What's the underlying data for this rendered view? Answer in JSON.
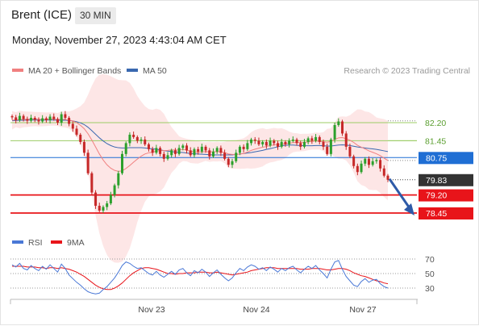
{
  "header": {
    "title": "Brent (ICE)",
    "timeframe": "30 MIN",
    "timestamp": "Monday, November 27, 2023 4:43:04 AM CET"
  },
  "legend": {
    "ma20_label": "MA 20 + Bollinger Bands",
    "ma50_label": "MA 50",
    "rsi_label": "RSI",
    "ma9_label": "9MA",
    "copyright": "Research © 2023 Trading Central"
  },
  "colors": {
    "ma20": "#f08080",
    "ma50": "#3a68b0",
    "bb_fill": "#fde3e3",
    "candle_up": "#2ca02c",
    "candle_down": "#c62828",
    "support": "#e8141a",
    "pivot": "#1f6ed4",
    "resistance": "#9ccc65",
    "resistance_text": "#5a9e2f",
    "last_price_bg": "#333333",
    "rsi": "#4a78d6",
    "rsi_ma": "#e8141a",
    "arrow": "#2e5aa8"
  },
  "chart_data": [
    {
      "type": "candlestick",
      "title": "Brent (ICE)",
      "timeframe": "30 MIN",
      "ylim": [
        78.2,
        82.6
      ],
      "x_ticks": [
        "Nov 23",
        "Nov 24",
        "Nov 27"
      ],
      "levels": [
        {
          "value": 82.2,
          "label": "82.20",
          "kind": "resistance"
        },
        {
          "value": 81.45,
          "label": "81.45",
          "kind": "resistance"
        },
        {
          "value": 80.75,
          "label": "80.75",
          "kind": "pivot"
        },
        {
          "value": 79.2,
          "label": "79.20",
          "kind": "support"
        },
        {
          "value": 78.45,
          "label": "78.45",
          "kind": "support"
        }
      ],
      "last_price": {
        "value": 79.83,
        "label": "79.83"
      },
      "forecast_arrow": {
        "from": 79.83,
        "to": 78.45,
        "direction": "down"
      },
      "close_series": [
        82.42,
        82.3,
        82.48,
        82.35,
        82.28,
        82.4,
        82.32,
        82.25,
        82.38,
        82.3,
        82.45,
        82.35,
        82.2,
        82.55,
        82.4,
        82.15,
        81.95,
        81.7,
        81.4,
        80.95,
        80.1,
        79.3,
        78.75,
        78.55,
        78.7,
        78.85,
        79.2,
        79.6,
        80.1,
        80.9,
        81.35,
        81.7,
        81.6,
        81.45,
        81.5,
        81.3,
        81.1,
        80.95,
        81.15,
        80.9,
        80.7,
        80.85,
        81.05,
        80.9,
        81.15,
        81.25,
        81.05,
        80.85,
        81.1,
        81.0,
        81.2,
        81.05,
        80.8,
        81.0,
        81.15,
        80.95,
        80.7,
        80.45,
        80.6,
        80.95,
        81.2,
        81.1,
        81.35,
        81.5,
        81.45,
        81.3,
        81.4,
        81.25,
        81.45,
        81.35,
        81.2,
        81.4,
        81.3,
        81.45,
        81.5,
        81.35,
        81.2,
        81.4,
        81.55,
        81.45,
        81.6,
        81.4,
        81.2,
        80.9,
        81.5,
        82.1,
        82.25,
        81.75,
        81.2,
        80.8,
        80.4,
        80.15,
        80.5,
        80.7,
        80.45,
        80.6,
        80.65,
        80.3,
        80.0,
        79.83
      ],
      "ma20_series": [
        82.3,
        82.32,
        82.33,
        82.34,
        82.34,
        82.35,
        82.35,
        82.34,
        82.34,
        82.34,
        82.35,
        82.35,
        82.33,
        82.34,
        82.33,
        82.31,
        82.27,
        82.2,
        82.09,
        81.95,
        81.74,
        81.48,
        81.19,
        80.9,
        80.65,
        80.45,
        80.31,
        80.22,
        80.18,
        80.2,
        80.3,
        80.42,
        80.56,
        80.69,
        80.81,
        80.9,
        80.95,
        80.97,
        81.02,
        81.04,
        81.04,
        81.05,
        81.07,
        81.06,
        81.07,
        81.09,
        81.06,
        81.01,
        80.99,
        80.97,
        80.98,
        81.0,
        80.99,
        80.99,
        81.0,
        80.99,
        80.96,
        80.9,
        80.88,
        80.88,
        80.9,
        80.92,
        80.98,
        81.05,
        81.1,
        81.14,
        81.18,
        81.21,
        81.25,
        81.28,
        81.29,
        81.31,
        81.32,
        81.35,
        81.37,
        81.38,
        81.37,
        81.38,
        81.4,
        81.42,
        81.44,
        81.43,
        81.41,
        81.39,
        81.42,
        81.5,
        81.57,
        81.58,
        81.54,
        81.47,
        81.38,
        81.26,
        81.18,
        81.11,
        81.03,
        80.97,
        80.91,
        80.83,
        80.73,
        80.63
      ],
      "ma50_series": [
        82.28,
        82.29,
        82.3,
        82.3,
        82.31,
        82.31,
        82.31,
        82.31,
        82.31,
        82.31,
        82.31,
        82.31,
        82.3,
        82.3,
        82.3,
        82.29,
        82.27,
        82.24,
        82.19,
        82.12,
        82.01,
        81.87,
        81.72,
        81.57,
        81.44,
        81.33,
        81.25,
        81.19,
        81.16,
        81.15,
        81.15,
        81.16,
        81.16,
        81.16,
        81.16,
        81.15,
        81.13,
        81.11,
        81.1,
        81.07,
        81.04,
        81.02,
        81.0,
        80.98,
        80.97,
        80.96,
        80.94,
        80.92,
        80.91,
        80.9,
        80.89,
        80.88,
        80.87,
        80.86,
        80.86,
        80.86,
        80.86,
        80.86,
        80.86,
        80.88,
        80.9,
        80.92,
        80.94,
        80.96,
        80.99,
        81.02,
        81.05,
        81.09,
        81.12,
        81.16,
        81.2,
        81.24,
        81.26,
        81.27,
        81.27,
        81.26,
        81.25,
        81.24,
        81.24,
        81.24,
        81.25,
        81.25,
        81.24,
        81.23,
        81.23,
        81.25,
        81.27,
        81.28,
        81.27,
        81.25,
        81.22,
        81.19,
        81.17,
        81.15,
        81.13,
        81.11,
        81.09,
        81.06,
        81.03,
        81.0
      ]
    },
    {
      "type": "line",
      "title": "RSI",
      "ylim": [
        20,
        80
      ],
      "y_ticks": [
        "70",
        "50",
        "30"
      ],
      "series": [
        {
          "name": "RSI",
          "values": [
            62,
            59,
            64,
            57,
            55,
            61,
            57,
            54,
            60,
            56,
            62,
            57,
            52,
            63,
            57,
            48,
            43,
            38,
            34,
            29,
            25,
            23,
            22,
            23,
            28,
            32,
            38,
            44,
            52,
            61,
            66,
            64,
            60,
            57,
            58,
            54,
            50,
            48,
            53,
            48,
            45,
            49,
            53,
            49,
            55,
            57,
            51,
            47,
            54,
            51,
            56,
            52,
            46,
            51,
            55,
            49,
            44,
            40,
            44,
            51,
            57,
            54,
            59,
            62,
            60,
            56,
            58,
            54,
            59,
            56,
            52,
            57,
            54,
            58,
            60,
            55,
            51,
            56,
            60,
            57,
            61,
            55,
            50,
            44,
            56,
            66,
            68,
            56,
            46,
            40,
            34,
            32,
            39,
            43,
            38,
            41,
            42,
            36,
            32,
            30
          ]
        },
        {
          "name": "9MA",
          "values": [
            60,
            60,
            60,
            60,
            59,
            59,
            59,
            58,
            58,
            57,
            58,
            58,
            57,
            58,
            57,
            56,
            54,
            52,
            49,
            46,
            42,
            38,
            34,
            31,
            29,
            28,
            28,
            30,
            33,
            37,
            42,
            47,
            51,
            54,
            57,
            58,
            58,
            57,
            56,
            54,
            52,
            50,
            50,
            49,
            50,
            50,
            51,
            51,
            51,
            52,
            52,
            52,
            51,
            51,
            52,
            51,
            50,
            49,
            48,
            49,
            50,
            51,
            52,
            54,
            55,
            56,
            57,
            58,
            58,
            58,
            57,
            57,
            57,
            57,
            57,
            57,
            56,
            56,
            56,
            57,
            57,
            57,
            56,
            55,
            55,
            56,
            57,
            57,
            56,
            54,
            51,
            49,
            47,
            46,
            44,
            42,
            40,
            39,
            37,
            36
          ]
        }
      ]
    }
  ]
}
